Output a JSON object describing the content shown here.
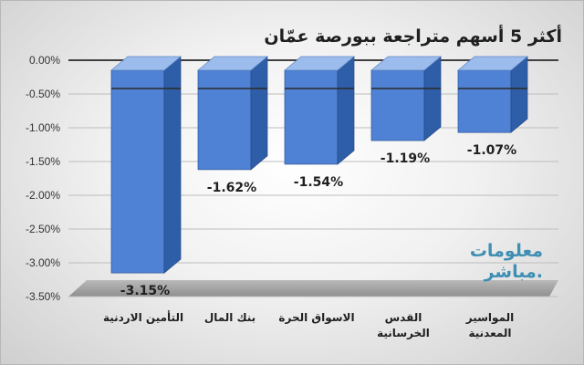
{
  "chart_data": {
    "type": "bar",
    "title": "أكثر 5 أسهم متراجعة ببورصة عمّان",
    "categories": [
      "التأمين الاردنية",
      "بنك المال",
      "الاسواق الحرة",
      "القدس الخرسانية",
      "المواسير المعدنية"
    ],
    "category_lines": [
      [
        "التأمين الاردنية"
      ],
      [
        "بنك المال"
      ],
      [
        "الاسواق الحرة"
      ],
      [
        "القدس",
        "الخرسانية"
      ],
      [
        "المواسير",
        "المعدنية"
      ]
    ],
    "values": [
      -3.15,
      -1.62,
      -1.54,
      -1.19,
      -1.07
    ],
    "data_labels": [
      "-3.15%",
      "-1.62%",
      "-1.54%",
      "-1.19%",
      "-1.07%"
    ],
    "yticks": [
      0,
      -0.5,
      -1.0,
      -1.5,
      -2.0,
      -2.5,
      -3.0,
      -3.5
    ],
    "ytick_labels": [
      "0.00%",
      "-0.50%",
      "-1.00%",
      "-1.50%",
      "-2.00%",
      "-2.50%",
      "-3.00%",
      "-3.50%"
    ],
    "ylim": [
      -3.5,
      0
    ],
    "grid": true,
    "bar_style": "3d",
    "colors": {
      "bar_front": "#4f81d4",
      "bar_side": "#2f5ea8",
      "bar_top": "#9bbcec",
      "floor": "#a6a6a6",
      "title": "#1f1f1f"
    }
  },
  "logo": {
    "line1": "معلومات",
    "line2": "مباشر."
  }
}
